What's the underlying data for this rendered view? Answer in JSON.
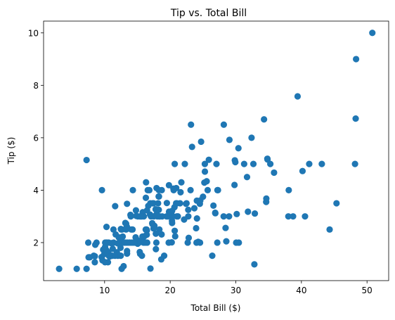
{
  "chart_data": {
    "type": "scatter",
    "title": "Tip vs. Total Bill",
    "xlabel": "Total Bill ($)",
    "ylabel": "Tip ($)",
    "xlim": [
      0.7,
      53.3
    ],
    "ylim": [
      0.55,
      10.45
    ],
    "xticks": [
      10,
      20,
      30,
      40,
      50
    ],
    "yticks": [
      2,
      4,
      6,
      8,
      10
    ],
    "grid": false,
    "marker_color": "#1f77b4",
    "x": [
      16.99,
      10.34,
      21.01,
      23.68,
      24.59,
      25.29,
      8.77,
      26.88,
      15.04,
      14.78,
      10.27,
      35.26,
      15.42,
      18.43,
      14.83,
      21.58,
      10.33,
      16.29,
      16.97,
      20.65,
      17.92,
      20.29,
      15.77,
      39.42,
      19.82,
      17.81,
      13.37,
      12.69,
      21.7,
      19.65,
      9.55,
      18.35,
      15.06,
      20.69,
      17.78,
      24.06,
      16.31,
      16.93,
      18.69,
      31.27,
      16.04,
      17.46,
      13.94,
      9.68,
      30.4,
      18.29,
      22.23,
      32.4,
      28.55,
      18.04,
      12.54,
      10.29,
      34.81,
      9.94,
      25.56,
      19.49,
      38.01,
      26.41,
      11.24,
      48.27,
      20.29,
      13.81,
      11.02,
      18.29,
      17.59,
      20.08,
      16.45,
      3.07,
      20.23,
      15.01,
      12.02,
      17.07,
      26.86,
      25.28,
      14.73,
      10.51,
      17.92,
      27.2,
      22.76,
      17.29,
      19.44,
      16.66,
      10.07,
      32.68,
      15.98,
      34.83,
      13.03,
      18.28,
      24.71,
      21.16,
      28.97,
      22.49,
      5.75,
      16.32,
      22.75,
      40.17,
      27.28,
      12.03,
      21.01,
      12.46,
      11.35,
      15.38,
      44.3,
      22.42,
      20.92,
      15.36,
      20.49,
      25.21,
      18.24,
      14.31,
      14.0,
      7.25,
      38.07,
      23.95,
      25.71,
      17.31,
      29.93,
      10.65,
      12.43,
      24.08,
      11.69,
      13.42,
      14.26,
      15.95,
      12.48,
      29.8,
      8.52,
      14.52,
      11.38,
      22.82,
      19.08,
      20.27,
      11.17,
      12.26,
      18.26,
      8.51,
      10.33,
      14.15,
      16.0,
      13.16,
      17.47,
      34.3,
      41.19,
      27.05,
      16.43,
      8.35,
      18.64,
      11.87,
      9.78,
      7.51,
      14.07,
      13.13,
      17.26,
      24.55,
      19.77,
      29.85,
      48.17,
      25.0,
      13.39,
      16.49,
      21.5,
      12.66,
      16.21,
      13.81,
      17.51,
      24.52,
      20.76,
      31.71,
      10.59,
      10.63,
      50.81,
      15.81,
      7.25,
      31.85,
      16.82,
      32.9,
      17.89,
      14.48,
      9.6,
      34.63,
      34.65,
      23.33,
      45.35,
      23.17,
      40.55,
      20.69,
      20.9,
      30.46,
      18.15,
      23.1,
      15.69,
      19.81,
      28.44,
      15.48,
      16.58,
      7.56,
      10.34,
      43.11,
      13.0,
      13.51,
      18.71,
      12.74,
      13.0,
      16.4,
      20.53,
      16.47,
      26.59,
      38.73,
      24.27,
      12.76,
      30.06,
      25.89,
      48.33,
      13.27,
      28.17,
      12.9,
      28.15,
      11.59,
      7.74,
      30.14,
      12.16,
      13.42,
      8.58,
      15.98,
      13.42,
      16.27,
      10.09,
      20.45,
      13.28,
      22.12,
      24.01,
      15.69,
      11.61,
      10.77,
      15.53,
      10.07,
      12.6,
      32.83,
      35.83,
      29.03,
      27.18,
      22.67,
      17.82,
      18.78
    ],
    "y": [
      1.01,
      1.66,
      3.5,
      3.31,
      3.61,
      4.71,
      2.0,
      3.12,
      1.96,
      3.23,
      1.71,
      5.0,
      1.57,
      3.0,
      3.02,
      3.92,
      1.67,
      3.71,
      3.5,
      3.35,
      4.08,
      2.75,
      2.23,
      7.58,
      3.18,
      2.34,
      2.0,
      2.0,
      4.3,
      3.0,
      1.45,
      2.5,
      3.0,
      2.45,
      3.27,
      3.6,
      2.0,
      3.07,
      2.31,
      5.0,
      2.24,
      2.54,
      3.06,
      1.32,
      5.6,
      3.0,
      5.0,
      6.0,
      2.05,
      3.0,
      2.5,
      2.6,
      5.2,
      1.56,
      4.34,
      3.51,
      3.0,
      1.5,
      1.76,
      6.73,
      3.21,
      2.0,
      1.98,
      3.76,
      2.64,
      3.15,
      2.47,
      1.0,
      2.01,
      2.09,
      1.97,
      3.0,
      3.14,
      5.0,
      2.2,
      1.25,
      3.08,
      4.0,
      3.0,
      2.71,
      3.0,
      3.4,
      1.83,
      5.0,
      2.03,
      5.17,
      2.0,
      4.0,
      5.85,
      3.0,
      3.0,
      3.5,
      1.0,
      4.3,
      3.25,
      4.73,
      4.0,
      1.5,
      3.0,
      1.5,
      2.5,
      3.0,
      2.5,
      3.48,
      4.08,
      1.64,
      4.06,
      4.29,
      3.76,
      4.0,
      3.0,
      1.0,
      4.0,
      2.55,
      4.0,
      3.5,
      5.07,
      1.5,
      1.8,
      2.92,
      2.31,
      1.68,
      2.5,
      2.0,
      2.52,
      4.2,
      1.48,
      2.0,
      2.0,
      2.18,
      1.5,
      2.83,
      1.5,
      2.0,
      3.25,
      1.25,
      2.0,
      2.0,
      2.0,
      2.75,
      3.5,
      6.7,
      5.0,
      5.0,
      2.3,
      1.5,
      1.36,
      1.63,
      1.73,
      2.0,
      2.5,
      2.0,
      2.74,
      2.0,
      2.0,
      5.14,
      5.0,
      3.75,
      2.61,
      2.0,
      3.5,
      2.5,
      2.0,
      2.0,
      3.0,
      3.48,
      2.24,
      4.5,
      1.61,
      2.0,
      10.0,
      3.16,
      5.15,
      3.18,
      4.0,
      3.11,
      2.0,
      2.0,
      4.0,
      3.55,
      3.68,
      5.65,
      3.5,
      6.5,
      3.0,
      5.0,
      3.5,
      2.0,
      3.5,
      4.0,
      1.5,
      4.19,
      2.56,
      2.02,
      4.0,
      1.44,
      2.0,
      5.0,
      2.0,
      2.0,
      4.0,
      2.01,
      2.0,
      2.5,
      4.0,
      3.23,
      3.41,
      3.0,
      2.03,
      2.23,
      2.0,
      5.16,
      9.0,
      2.5,
      6.5,
      1.1,
      3.0,
      1.5,
      1.44,
      3.09,
      2.2,
      3.48,
      1.92,
      3.0,
      1.58,
      2.5,
      2.0,
      3.0,
      2.72,
      2.88,
      2.0,
      3.0,
      3.39,
      1.47,
      3.0,
      1.25,
      1.0,
      1.17,
      4.67,
      5.92,
      2.0,
      2.0,
      1.75,
      3.0
    ]
  }
}
